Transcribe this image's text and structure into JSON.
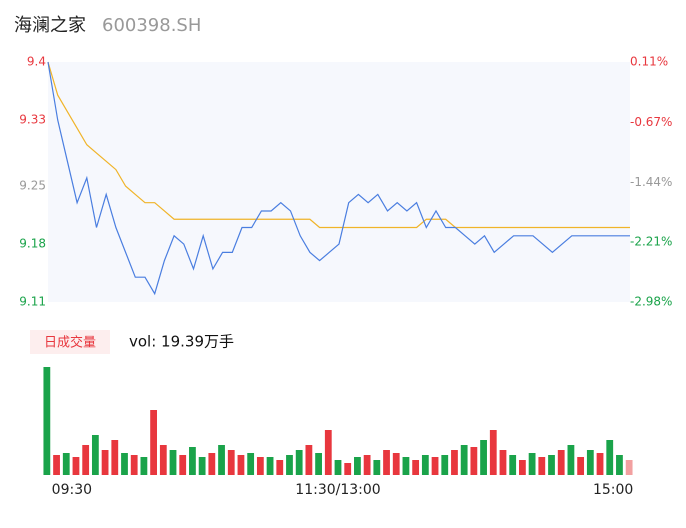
{
  "header": {
    "title": "海澜之家",
    "code": "600398.SH"
  },
  "chart_data": {
    "type": "line",
    "series": [
      {
        "name": "price",
        "color": "#4a7ee0",
        "values": [
          9.4,
          9.33,
          9.28,
          9.23,
          9.26,
          9.2,
          9.24,
          9.2,
          9.17,
          9.14,
          9.14,
          9.12,
          9.16,
          9.19,
          9.18,
          9.15,
          9.19,
          9.15,
          9.17,
          9.17,
          9.2,
          9.2,
          9.22,
          9.22,
          9.23,
          9.22,
          9.19,
          9.17,
          9.16,
          9.17,
          9.18,
          9.23,
          9.24,
          9.23,
          9.24,
          9.22,
          9.23,
          9.22,
          9.23,
          9.2,
          9.22,
          9.2,
          9.2,
          9.19,
          9.18,
          9.19,
          9.17,
          9.18,
          9.19,
          9.19,
          9.19,
          9.18,
          9.17,
          9.18,
          9.19,
          9.19,
          9.19,
          9.19,
          9.19,
          9.19,
          9.19
        ]
      },
      {
        "name": "average",
        "color": "#f0b429",
        "values": [
          9.4,
          9.36,
          9.34,
          9.32,
          9.3,
          9.29,
          9.28,
          9.27,
          9.25,
          9.24,
          9.23,
          9.23,
          9.22,
          9.21,
          9.21,
          9.21,
          9.21,
          9.21,
          9.21,
          9.21,
          9.21,
          9.21,
          9.21,
          9.21,
          9.21,
          9.21,
          9.21,
          9.21,
          9.2,
          9.2,
          9.2,
          9.2,
          9.2,
          9.2,
          9.2,
          9.2,
          9.2,
          9.2,
          9.2,
          9.21,
          9.21,
          9.21,
          9.2,
          9.2,
          9.2,
          9.2,
          9.2,
          9.2,
          9.2,
          9.2,
          9.2,
          9.2,
          9.2,
          9.2,
          9.2,
          9.2,
          9.2,
          9.2,
          9.2,
          9.2,
          9.2
        ]
      }
    ],
    "xlim": [
      0,
      60
    ],
    "xticks": [
      {
        "value": 0,
        "label": "09:30"
      },
      {
        "value": 30,
        "label": "11:30/13:00"
      },
      {
        "value": 60,
        "label": "15:00"
      }
    ],
    "ylim": [
      9.11,
      9.4
    ],
    "yticks": [
      9.4,
      9.33,
      9.25,
      9.18,
      9.11
    ],
    "ytick_colors": [
      "#e8373e",
      "#e8373e",
      "#999999",
      "#1aa34a",
      "#1aa34a"
    ],
    "y2lim": [
      -2.98,
      0.11
    ],
    "y2ticks": [
      {
        "value": 0.11,
        "label": "0.11%"
      },
      {
        "value": -0.67,
        "label": "-0.67%"
      },
      {
        "value": -1.44,
        "label": "-1.44%"
      },
      {
        "value": -2.21,
        "label": "-2.21%"
      },
      {
        "value": -2.98,
        "label": "-2.98%"
      }
    ],
    "volume": {
      "button": "日成交量",
      "label": "vol: 19.39万手",
      "values": [
        108,
        20,
        22,
        18,
        30,
        40,
        25,
        35,
        22,
        20,
        18,
        65,
        30,
        25,
        20,
        28,
        18,
        22,
        30,
        25,
        20,
        22,
        18,
        18,
        15,
        20,
        25,
        30,
        22,
        45,
        15,
        12,
        18,
        20,
        15,
        25,
        22,
        18,
        15,
        20,
        18,
        20,
        25,
        30,
        28,
        35,
        45,
        25,
        20,
        15,
        22,
        18,
        20,
        25,
        30,
        18,
        25,
        22,
        35,
        20,
        15
      ],
      "colors": [
        "#1aa34a",
        "#e8373e",
        "#1aa34a",
        "#e8373e",
        "#e8373e",
        "#1aa34a",
        "#e8373e",
        "#e8373e",
        "#1aa34a",
        "#e8373e",
        "#1aa34a",
        "#e8373e",
        "#e8373e",
        "#1aa34a",
        "#e8373e",
        "#1aa34a",
        "#1aa34a",
        "#e8373e",
        "#1aa34a",
        "#e8373e",
        "#e8373e",
        "#1aa34a",
        "#e8373e",
        "#1aa34a",
        "#e8373e",
        "#1aa34a",
        "#1aa34a",
        "#e8373e",
        "#1aa34a",
        "#e8373e",
        "#1aa34a",
        "#e8373e",
        "#1aa34a",
        "#e8373e",
        "#1aa34a",
        "#e8373e",
        "#e8373e",
        "#1aa34a",
        "#e8373e",
        "#1aa34a",
        "#e8373e",
        "#1aa34a",
        "#e8373e",
        "#1aa34a",
        "#e8373e",
        "#1aa34a",
        "#e8373e",
        "#e8373e",
        "#1aa34a",
        "#e8373e",
        "#1aa34a",
        "#e8373e",
        "#1aa34a",
        "#e8373e",
        "#1aa34a",
        "#e8373e",
        "#1aa34a",
        "#e8373e",
        "#1aa34a",
        "#1aa34a",
        "#f2a0a0"
      ],
      "ylim": [
        0,
        110
      ]
    }
  }
}
